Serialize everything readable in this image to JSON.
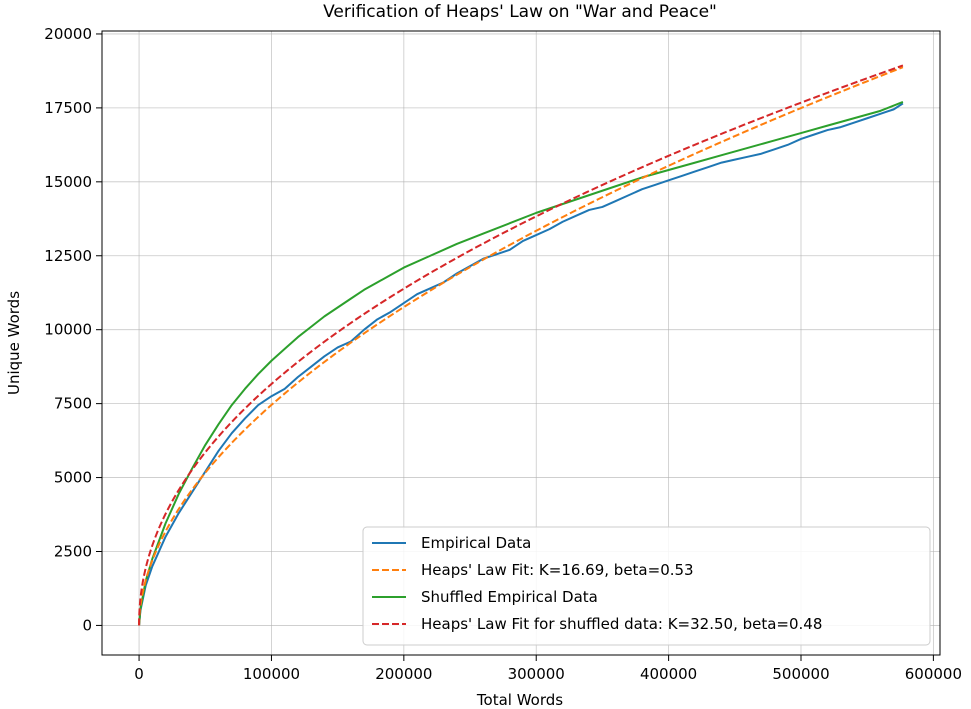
{
  "chart_data": {
    "type": "line",
    "title": "Verification of Heaps' Law on \"War and Peace\"",
    "xlabel": "Total Words",
    "ylabel": "Unique Words",
    "xlim": [
      -28000,
      605000
    ],
    "ylim": [
      -1000,
      20100
    ],
    "xticks": [
      0,
      100000,
      200000,
      300000,
      400000,
      500000,
      600000
    ],
    "yticks": [
      0,
      2500,
      5000,
      7500,
      10000,
      12500,
      15000,
      17500,
      20000
    ],
    "grid": true,
    "legend_position": "bottom-right",
    "series": [
      {
        "name": "Empirical Data",
        "color": "#1f77b4",
        "style": "solid",
        "points": [
          [
            0,
            0
          ],
          [
            1000,
            500
          ],
          [
            5000,
            1350
          ],
          [
            10000,
            2000
          ],
          [
            20000,
            3000
          ],
          [
            30000,
            3800
          ],
          [
            40000,
            4500
          ],
          [
            50000,
            5200
          ],
          [
            60000,
            5900
          ],
          [
            70000,
            6500
          ],
          [
            80000,
            7000
          ],
          [
            90000,
            7450
          ],
          [
            100000,
            7750
          ],
          [
            110000,
            8000
          ],
          [
            120000,
            8400
          ],
          [
            130000,
            8750
          ],
          [
            140000,
            9100
          ],
          [
            150000,
            9400
          ],
          [
            160000,
            9600
          ],
          [
            170000,
            10000
          ],
          [
            180000,
            10350
          ],
          [
            190000,
            10600
          ],
          [
            200000,
            10900
          ],
          [
            210000,
            11200
          ],
          [
            220000,
            11400
          ],
          [
            230000,
            11600
          ],
          [
            240000,
            11900
          ],
          [
            250000,
            12150
          ],
          [
            260000,
            12400
          ],
          [
            270000,
            12550
          ],
          [
            280000,
            12700
          ],
          [
            290000,
            13000
          ],
          [
            300000,
            13200
          ],
          [
            310000,
            13400
          ],
          [
            320000,
            13650
          ],
          [
            330000,
            13850
          ],
          [
            340000,
            14050
          ],
          [
            350000,
            14150
          ],
          [
            360000,
            14350
          ],
          [
            370000,
            14550
          ],
          [
            380000,
            14750
          ],
          [
            390000,
            14900
          ],
          [
            400000,
            15050
          ],
          [
            410000,
            15200
          ],
          [
            420000,
            15350
          ],
          [
            430000,
            15500
          ],
          [
            440000,
            15650
          ],
          [
            450000,
            15750
          ],
          [
            460000,
            15850
          ],
          [
            470000,
            15950
          ],
          [
            480000,
            16100
          ],
          [
            490000,
            16250
          ],
          [
            500000,
            16450
          ],
          [
            510000,
            16600
          ],
          [
            520000,
            16750
          ],
          [
            530000,
            16850
          ],
          [
            540000,
            17000
          ],
          [
            550000,
            17150
          ],
          [
            560000,
            17300
          ],
          [
            570000,
            17450
          ],
          [
            577000,
            17650
          ]
        ]
      },
      {
        "name": "Heaps' Law Fit: K=16.69, beta=0.53",
        "color": "#ff7f0e",
        "style": "dashed",
        "K": 16.69,
        "beta": 0.53,
        "x_max": 577000
      },
      {
        "name": "Shuffled Empirical Data",
        "color": "#2ca02c",
        "style": "solid",
        "points": [
          [
            0,
            0
          ],
          [
            1000,
            550
          ],
          [
            5000,
            1500
          ],
          [
            10000,
            2250
          ],
          [
            20000,
            3450
          ],
          [
            30000,
            4450
          ],
          [
            40000,
            5300
          ],
          [
            50000,
            6100
          ],
          [
            60000,
            6800
          ],
          [
            70000,
            7450
          ],
          [
            80000,
            8000
          ],
          [
            90000,
            8500
          ],
          [
            100000,
            8950
          ],
          [
            110000,
            9350
          ],
          [
            120000,
            9750
          ],
          [
            130000,
            10100
          ],
          [
            140000,
            10450
          ],
          [
            150000,
            10750
          ],
          [
            160000,
            11050
          ],
          [
            170000,
            11350
          ],
          [
            180000,
            11600
          ],
          [
            190000,
            11850
          ],
          [
            200000,
            12100
          ],
          [
            220000,
            12500
          ],
          [
            240000,
            12900
          ],
          [
            260000,
            13250
          ],
          [
            280000,
            13600
          ],
          [
            300000,
            13950
          ],
          [
            320000,
            14250
          ],
          [
            340000,
            14550
          ],
          [
            360000,
            14850
          ],
          [
            380000,
            15150
          ],
          [
            400000,
            15400
          ],
          [
            420000,
            15650
          ],
          [
            440000,
            15900
          ],
          [
            460000,
            16150
          ],
          [
            480000,
            16400
          ],
          [
            500000,
            16650
          ],
          [
            520000,
            16900
          ],
          [
            540000,
            17150
          ],
          [
            560000,
            17400
          ],
          [
            577000,
            17700
          ]
        ]
      },
      {
        "name": "Heaps' Law Fit for shuffled data: K=32.50, beta=0.48",
        "color": "#d62728",
        "style": "dashed",
        "K": 32.5,
        "beta": 0.48,
        "x_max": 577000
      }
    ]
  }
}
